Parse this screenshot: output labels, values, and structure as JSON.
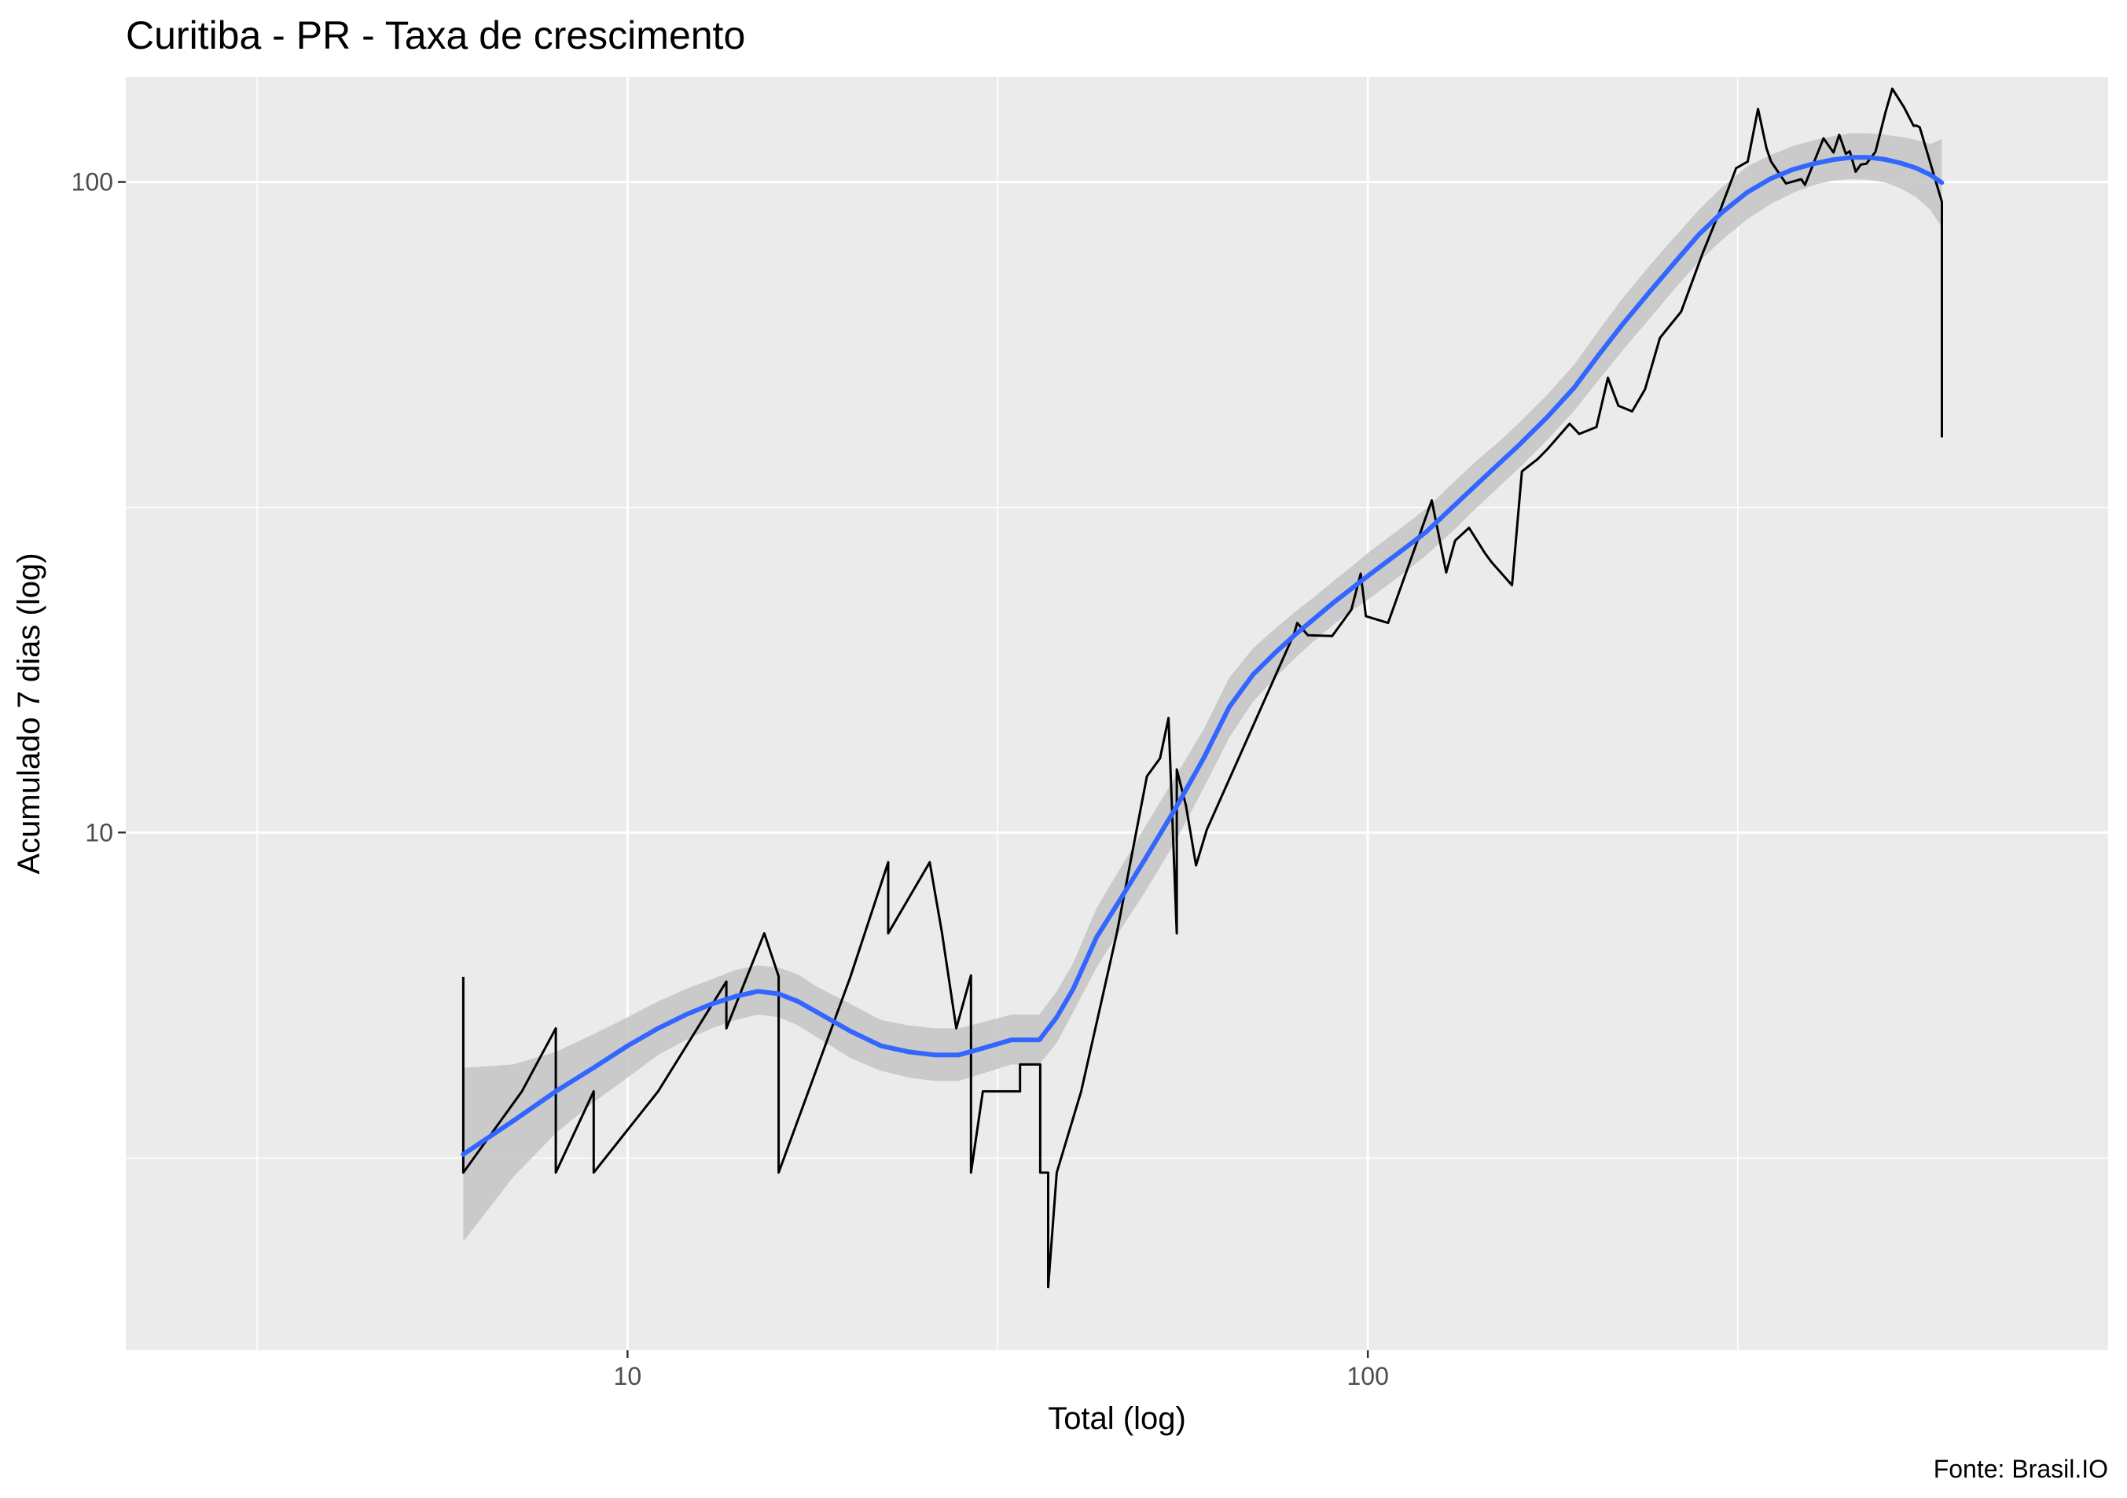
{
  "chart_data": {
    "type": "line",
    "title": "Curitiba - PR - Taxa de crescimento",
    "xlabel": "Total (log)",
    "ylabel": "Acumulado 7 dias (log)",
    "caption": "Fonte: Brasil.IO",
    "x_scale": "log10",
    "y_scale": "log10",
    "xlim": [
      2.1,
      1000
    ],
    "ylim": [
      1.6,
      145
    ],
    "x_ticks": [
      {
        "value": 10,
        "label": "10"
      },
      {
        "value": 100,
        "label": "100"
      }
    ],
    "x_minor_ticks": [
      3.16,
      31.6,
      316
    ],
    "y_ticks": [
      {
        "value": 10,
        "label": "10"
      },
      {
        "value": 100,
        "label": "100"
      }
    ],
    "y_minor_ticks": [
      3.16,
      31.6
    ],
    "grid": true,
    "legend": "none",
    "series": [
      {
        "role": "observed",
        "color": "#000000",
        "x": [
          6,
          6,
          6,
          7.2,
          8,
          8,
          9,
          9,
          11,
          13.6,
          13.6,
          15.3,
          16,
          16,
          20,
          22.5,
          22.5,
          25.6,
          26.6,
          27.8,
          29.1,
          29.1,
          30.2,
          33.9,
          33.9,
          36.1,
          36.1,
          37,
          37,
          38,
          38,
          41,
          45.8,
          50.3,
          52.4,
          53.8,
          55.2,
          55.2,
          56.8,
          58.6,
          60.6,
          79.5,
          80.3,
          83,
          89.5,
          95,
          97.8,
          99.4,
          106.5,
          118,
          122,
          127.6,
          131.2,
          137,
          143.9,
          147.1,
          156.6,
          161.5,
          169.6,
          175,
          187.3,
          193,
          203.6,
          211,
          218,
          227.5,
          236.8,
          248.1,
          265,
          283.8,
          300,
          314.4,
          326,
          336.6,
          345.6,
          350.5,
          367.1,
          385,
          389.5,
          412.6,
          425.6,
          433.3,
          442.3,
          447.7,
          456,
          463.5,
          471.4,
          485,
          500,
          511,
          530,
          546,
          551,
          556.6,
          596.3,
          596.3,
          596.3
        ],
        "y": [
          6,
          3,
          3,
          4,
          5,
          3,
          4,
          3,
          4,
          5.9,
          5,
          7,
          6.01,
          3,
          6,
          9,
          7,
          9,
          7,
          5,
          6.03,
          3,
          4,
          4,
          4.4,
          4.4,
          3,
          3,
          2,
          3,
          3,
          4,
          7,
          12.2,
          13,
          15,
          7,
          12.5,
          11,
          8.9,
          10.1,
          20.2,
          21,
          20.1,
          20.05,
          22,
          25,
          21.5,
          21,
          29.1,
          32.4,
          25.1,
          28.1,
          29.4,
          26.9,
          26,
          24,
          35.9,
          37.5,
          38.9,
          42.5,
          41,
          42,
          50,
          45.3,
          44.4,
          48,
          57.6,
          63.2,
          78.1,
          91.2,
          105,
          107.5,
          129.5,
          112.6,
          107.5,
          99.5,
          101,
          99,
          116.7,
          111,
          118.2,
          110.5,
          111.5,
          103.7,
          106.4,
          106.7,
          111.3,
          127.7,
          139.1,
          130.3,
          122,
          122.1,
          121.4,
          93.2,
          40.5,
          40.5
        ]
      },
      {
        "role": "loess fit",
        "color": "#3366ff",
        "x": [
          6,
          7,
          8,
          9,
          10,
          11,
          12,
          13,
          14,
          15,
          16,
          17,
          18,
          20,
          22,
          24,
          26,
          28,
          30,
          33,
          36,
          38,
          40,
          43,
          46,
          50,
          55,
          60,
          65,
          70,
          75,
          80,
          85,
          90,
          95,
          100,
          110,
          120,
          130,
          140,
          150,
          160,
          175,
          190,
          205,
          220,
          240,
          260,
          280,
          300,
          325,
          350,
          375,
          400,
          425,
          450,
          475,
          500,
          525,
          550,
          575,
          596
        ],
        "y": [
          3.2,
          3.6,
          4.0,
          4.35,
          4.7,
          5.0,
          5.25,
          5.45,
          5.6,
          5.7,
          5.65,
          5.5,
          5.3,
          4.95,
          4.7,
          4.6,
          4.55,
          4.55,
          4.65,
          4.8,
          4.8,
          5.2,
          5.75,
          6.9,
          7.8,
          9.1,
          10.9,
          13.0,
          15.6,
          17.5,
          18.9,
          20.2,
          21.4,
          22.6,
          23.7,
          24.8,
          26.9,
          29.0,
          31.6,
          34.2,
          36.8,
          39.4,
          43.6,
          48.3,
          54.2,
          60.1,
          67.7,
          75.3,
          83.0,
          89.5,
          96.3,
          101.2,
          104.5,
          106.7,
          108.2,
          109.1,
          109.1,
          108.3,
          106.9,
          105.1,
          102.6,
          99.8
        ],
        "ci_low": [
          2.35,
          2.95,
          3.45,
          3.85,
          4.2,
          4.55,
          4.8,
          5.0,
          5.15,
          5.25,
          5.2,
          5.05,
          4.85,
          4.5,
          4.3,
          4.2,
          4.15,
          4.15,
          4.25,
          4.4,
          4.4,
          4.75,
          5.3,
          6.2,
          7.0,
          8.1,
          9.7,
          11.7,
          14.0,
          15.9,
          17.3,
          18.6,
          19.8,
          20.9,
          21.9,
          22.8,
          24.7,
          26.7,
          29.0,
          31.5,
          33.9,
          36.3,
          40.2,
          44.5,
          49.6,
          54.8,
          61.6,
          68.6,
          75.4,
          81.2,
          87.6,
          92.5,
          96.2,
          98.9,
          100.5,
          101.0,
          100.8,
          99.8,
          97.7,
          94.8,
          90.7,
          85.2
        ],
        "ci_high": [
          4.35,
          4.4,
          4.6,
          4.9,
          5.2,
          5.5,
          5.75,
          5.95,
          6.15,
          6.25,
          6.2,
          6.05,
          5.8,
          5.45,
          5.15,
          5.05,
          5.0,
          5.0,
          5.1,
          5.25,
          5.25,
          5.7,
          6.3,
          7.65,
          8.7,
          10.2,
          12.2,
          14.4,
          17.3,
          19.2,
          20.6,
          21.9,
          23.1,
          24.4,
          25.6,
          26.9,
          29.2,
          31.5,
          34.4,
          37.2,
          39.8,
          42.6,
          47.2,
          52.4,
          59.1,
          65.9,
          74.3,
          82.4,
          90.6,
          97.9,
          105.5,
          110.1,
          113.5,
          115.9,
          117.6,
          118.9,
          118.8,
          118.2,
          117.3,
          116.1,
          114.4,
          116.4
        ]
      }
    ]
  }
}
